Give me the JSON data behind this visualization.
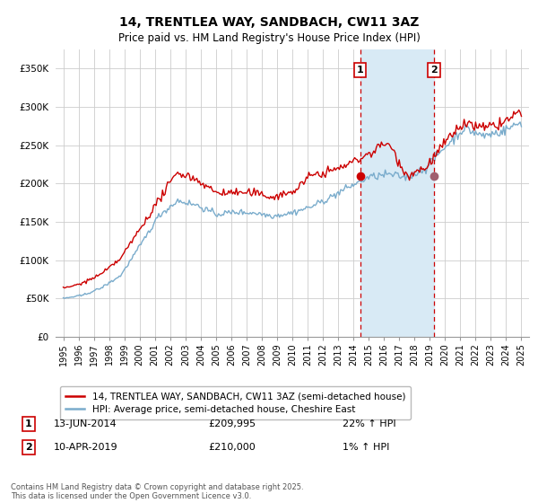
{
  "title1": "14, TRENTLEA WAY, SANDBACH, CW11 3AZ",
  "title2": "Price paid vs. HM Land Registry's House Price Index (HPI)",
  "legend_label1": "14, TRENTLEA WAY, SANDBACH, CW11 3AZ (semi-detached house)",
  "legend_label2": "HPI: Average price, semi-detached house, Cheshire East",
  "footnote": "Contains HM Land Registry data © Crown copyright and database right 2025.\nThis data is licensed under the Open Government Licence v3.0.",
  "sale1_label": "1",
  "sale1_date": "13-JUN-2014",
  "sale1_price": "£209,995",
  "sale1_hpi": "22% ↑ HPI",
  "sale2_label": "2",
  "sale2_date": "10-APR-2019",
  "sale2_price": "£210,000",
  "sale2_hpi": "1% ↑ HPI",
  "sale1_x": 2014.44,
  "sale1_y": 209995,
  "sale2_x": 2019.27,
  "sale2_y": 210000,
  "vline1_x": 2014.44,
  "vline2_x": 2019.27,
  "ylim": [
    0,
    375000
  ],
  "xlim": [
    1994.5,
    2025.5
  ],
  "yticks": [
    0,
    50000,
    100000,
    150000,
    200000,
    250000,
    300000,
    350000
  ],
  "ytick_labels": [
    "£0",
    "£50K",
    "£100K",
    "£150K",
    "£200K",
    "£250K",
    "£300K",
    "£350K"
  ],
  "xticks": [
    1995,
    1996,
    1997,
    1998,
    1999,
    2000,
    2001,
    2002,
    2003,
    2004,
    2005,
    2006,
    2007,
    2008,
    2009,
    2010,
    2011,
    2012,
    2013,
    2014,
    2015,
    2016,
    2017,
    2018,
    2019,
    2020,
    2021,
    2022,
    2023,
    2024,
    2025
  ],
  "color_red": "#cc0000",
  "color_blue": "#7aaccc",
  "color_vline": "#cc0000",
  "background_color": "#ffffff",
  "grid_color": "#cccccc",
  "shaded_region_color": "#d8eaf5"
}
